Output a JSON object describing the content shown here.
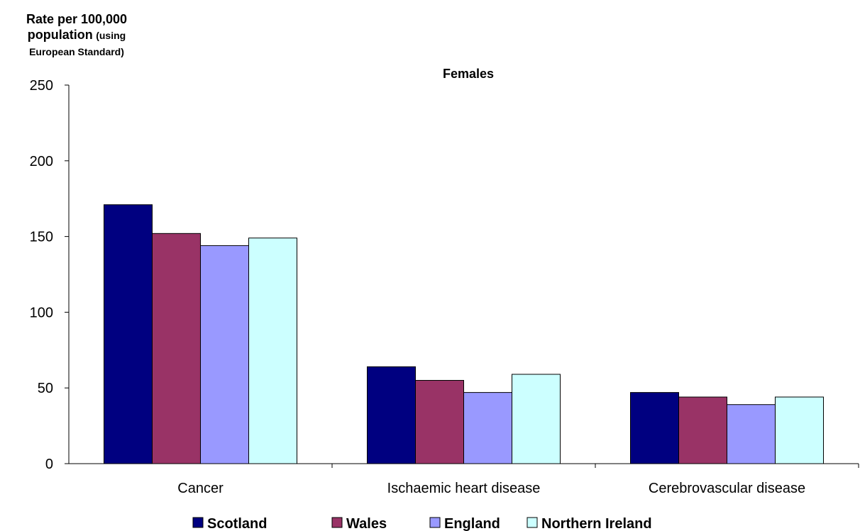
{
  "chart_data": {
    "type": "bar",
    "title": "Females",
    "ylabel": {
      "line1": "Rate per 100,000",
      "line2_main": "population",
      "line2_sub": "(using",
      "line3": "European Standard)"
    },
    "xlabel": "",
    "ylim": [
      0,
      250
    ],
    "yticks": [
      "0",
      "50",
      "100",
      "150",
      "200",
      "250"
    ],
    "ytick_values": [
      0,
      50,
      100,
      150,
      200,
      250
    ],
    "categories": [
      "Cancer",
      "Ischaemic heart disease",
      "Cerebrovascular disease"
    ],
    "series": [
      {
        "name": "Scotland",
        "color": "#000080",
        "values": [
          171,
          64,
          47
        ]
      },
      {
        "name": "Wales",
        "color": "#993366",
        "values": [
          152,
          55,
          44
        ]
      },
      {
        "name": "England",
        "color": "#9999ff",
        "values": [
          144,
          47,
          39
        ]
      },
      {
        "name": "Northern Ireland",
        "color": "#ccffff",
        "values": [
          149,
          59,
          44
        ]
      }
    ],
    "grid": false,
    "legend": "bottom"
  }
}
